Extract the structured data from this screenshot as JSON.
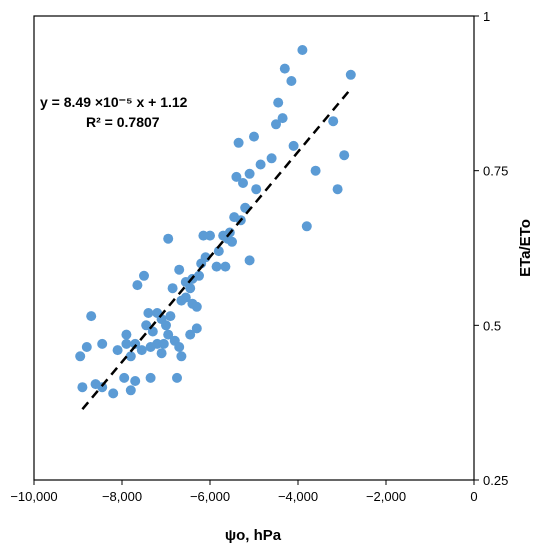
{
  "chart_data": {
    "type": "scatter",
    "title": "",
    "xlabel": "ψo, hPa",
    "ylabel": "ETa/ETo",
    "xlim": [
      -10000,
      0
    ],
    "ylim": [
      0.25,
      1.0
    ],
    "x_ticks": [
      -10000,
      -8000,
      -6000,
      -4000,
      -2000,
      0
    ],
    "x_tick_labels": [
      "−10,000",
      "−8,000",
      "−6,000",
      "−4,000",
      "−2,000",
      "0"
    ],
    "y_ticks": [
      0.25,
      0.5,
      0.75,
      1.0
    ],
    "y_tick_labels": [
      "0.25",
      "0.5",
      "0.75",
      "1"
    ],
    "y_axis_side": "right",
    "grid": false,
    "legend": "none",
    "point_color": "#5b9bd5",
    "trendline": {
      "slope": 8.49e-05,
      "intercept": 1.12,
      "x_range": [
        -8900,
        -2800
      ],
      "style": "dashed",
      "color": "#000000"
    },
    "annotations": {
      "equation": "y = 8.49 ×10⁻⁵ x + 1.12",
      "r_squared": "R² = 0.7807"
    },
    "points": [
      [
        -3900,
        0.945
      ],
      [
        -2800,
        0.905
      ],
      [
        -4300,
        0.915
      ],
      [
        -4150,
        0.895
      ],
      [
        -3200,
        0.83
      ],
      [
        -4450,
        0.86
      ],
      [
        -4350,
        0.835
      ],
      [
        -4500,
        0.825
      ],
      [
        -5350,
        0.795
      ],
      [
        -5000,
        0.805
      ],
      [
        -4600,
        0.77
      ],
      [
        -4100,
        0.79
      ],
      [
        -2950,
        0.775
      ],
      [
        -3600,
        0.75
      ],
      [
        -3100,
        0.72
      ],
      [
        -3800,
        0.66
      ],
      [
        -5400,
        0.74
      ],
      [
        -5100,
        0.745
      ],
      [
        -4850,
        0.76
      ],
      [
        -5250,
        0.73
      ],
      [
        -4950,
        0.72
      ],
      [
        -5200,
        0.69
      ],
      [
        -5450,
        0.675
      ],
      [
        -5300,
        0.67
      ],
      [
        -5550,
        0.65
      ],
      [
        -5600,
        0.64
      ],
      [
        -5700,
        0.645
      ],
      [
        -5500,
        0.635
      ],
      [
        -5800,
        0.62
      ],
      [
        -6000,
        0.645
      ],
      [
        -6150,
        0.645
      ],
      [
        -6100,
        0.61
      ],
      [
        -6200,
        0.6
      ],
      [
        -5850,
        0.595
      ],
      [
        -5650,
        0.595
      ],
      [
        -5100,
        0.605
      ],
      [
        -6250,
        0.58
      ],
      [
        -6400,
        0.575
      ],
      [
        -6550,
        0.57
      ],
      [
        -6450,
        0.56
      ],
      [
        -6700,
        0.59
      ],
      [
        -6850,
        0.56
      ],
      [
        -6550,
        0.545
      ],
      [
        -6650,
        0.54
      ],
      [
        -6400,
        0.535
      ],
      [
        -6300,
        0.53
      ],
      [
        -6950,
        0.64
      ],
      [
        -7500,
        0.58
      ],
      [
        -7650,
        0.565
      ],
      [
        -7400,
        0.52
      ],
      [
        -7200,
        0.52
      ],
      [
        -7100,
        0.51
      ],
      [
        -6900,
        0.515
      ],
      [
        -7000,
        0.5
      ],
      [
        -7300,
        0.49
      ],
      [
        -7450,
        0.5
      ],
      [
        -6950,
        0.485
      ],
      [
        -6800,
        0.475
      ],
      [
        -6450,
        0.485
      ],
      [
        -6300,
        0.495
      ],
      [
        -7200,
        0.47
      ],
      [
        -7350,
        0.465
      ],
      [
        -7550,
        0.46
      ],
      [
        -7700,
        0.47
      ],
      [
        -7900,
        0.47
      ],
      [
        -7900,
        0.485
      ],
      [
        -8100,
        0.46
      ],
      [
        -7800,
        0.45
      ],
      [
        -7100,
        0.455
      ],
      [
        -7050,
        0.47
      ],
      [
        -6700,
        0.465
      ],
      [
        -6650,
        0.45
      ],
      [
        -8700,
        0.515
      ],
      [
        -8800,
        0.465
      ],
      [
        -8450,
        0.47
      ],
      [
        -8950,
        0.45
      ],
      [
        -7950,
        0.415
      ],
      [
        -7700,
        0.41
      ],
      [
        -7800,
        0.395
      ],
      [
        -8200,
        0.39
      ],
      [
        -8450,
        0.4
      ],
      [
        -8600,
        0.405
      ],
      [
        -8900,
        0.4
      ],
      [
        -7350,
        0.415
      ],
      [
        -6750,
        0.415
      ]
    ]
  }
}
